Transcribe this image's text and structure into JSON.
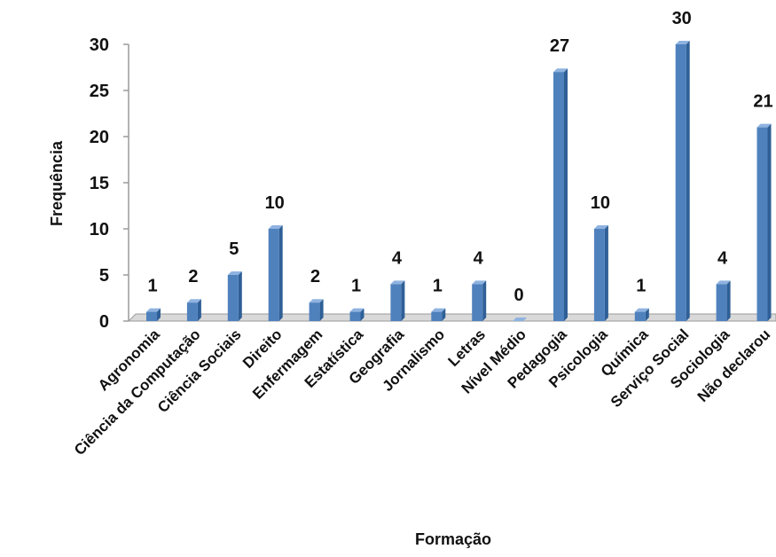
{
  "chart_data": {
    "type": "bar",
    "title": "",
    "xlabel": "Formação",
    "ylabel": "Frequência",
    "ylim": [
      0,
      30
    ],
    "yticks": [
      0,
      5,
      10,
      15,
      20,
      25,
      30
    ],
    "grid": false,
    "legend": "none",
    "categories": [
      "Agronomia",
      "Ciência da Computação",
      "Ciência Sociais",
      "Direito",
      "Enfermagem",
      "Estatística",
      "Geografia",
      "Jornalismo",
      "Letras",
      "Nível Médio",
      "Pedagogia",
      "Psicologia",
      "Química",
      "Serviço Social",
      "Sociologia",
      "Não declarou"
    ],
    "values": [
      1,
      2,
      5,
      10,
      2,
      1,
      4,
      1,
      4,
      0,
      27,
      10,
      1,
      30,
      4,
      21
    ],
    "colors": {
      "bar": "#4f81bd",
      "bar_dark": "#2f5f96",
      "bar_light": "#8fb3e0",
      "floor": "#d9d9d9",
      "axis": "#9a9a9a"
    }
  }
}
